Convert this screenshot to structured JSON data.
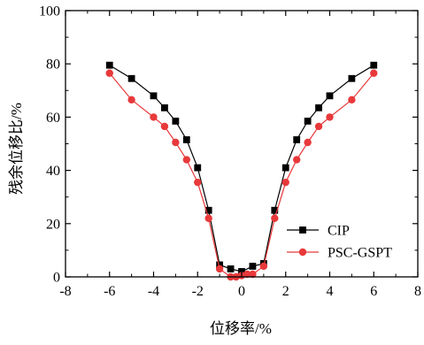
{
  "chart_data": {
    "type": "line",
    "title": "",
    "xlabel": "位移率/%",
    "ylabel": "残余位移比/%",
    "xlim": [
      -8,
      8
    ],
    "ylim": [
      0,
      100
    ],
    "xticks": [
      -8,
      -6,
      -4,
      -2,
      0,
      2,
      4,
      6,
      8
    ],
    "yticks": [
      0,
      20,
      40,
      60,
      80,
      100
    ],
    "grid": false,
    "legend_position": "bottom-right",
    "series": [
      {
        "name": "CIP",
        "color": "#000000",
        "marker": "square",
        "x": [
          -6,
          -5,
          -4,
          -3.5,
          -3,
          -2.5,
          -2,
          -1.5,
          -1,
          -0.5,
          0,
          0.5,
          1,
          1.5,
          2,
          2.5,
          3,
          3.5,
          4,
          5,
          6
        ],
        "y": [
          79.5,
          74.5,
          68,
          63.5,
          58.5,
          51.5,
          41,
          25,
          4.5,
          3,
          2,
          4,
          5,
          25,
          41,
          51.5,
          58.5,
          63.5,
          68,
          74.5,
          79.5
        ]
      },
      {
        "name": "PSC-GSPT",
        "color": "#e8393b",
        "marker": "circle",
        "x": [
          -6,
          -5,
          -4,
          -3.5,
          -3,
          -2.5,
          -2,
          -1.5,
          -1,
          -0.5,
          -0.25,
          0,
          0.25,
          0.5,
          1,
          1.5,
          2,
          2.5,
          3,
          3.5,
          4,
          5,
          6
        ],
        "y": [
          76.5,
          66.5,
          60,
          56.5,
          50.5,
          44,
          35.5,
          22,
          3,
          0,
          0,
          0.5,
          1,
          1,
          4,
          22,
          35.5,
          44,
          50.5,
          56.5,
          60,
          66.5,
          76.5
        ]
      }
    ]
  }
}
